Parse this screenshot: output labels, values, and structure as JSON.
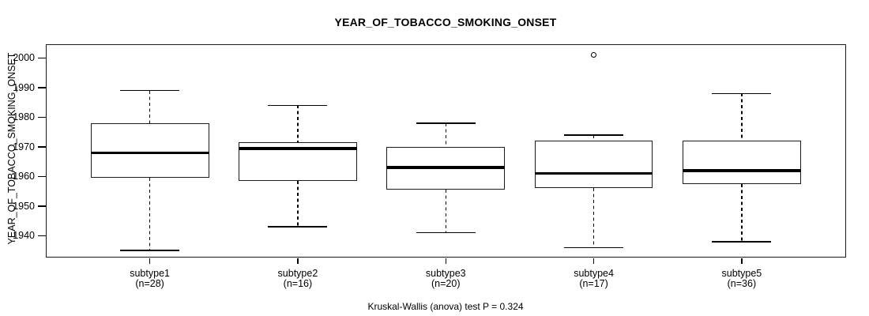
{
  "title": "YEAR_OF_TOBACCO_SMOKING_ONSET",
  "caption": "Kruskal-Wallis (anova) test P = 0.324",
  "colors": {
    "ink": "#000000",
    "background": "#ffffff"
  },
  "chart_data": {
    "type": "boxplot",
    "title": "YEAR_OF_TOBACCO_SMOKING_ONSET",
    "ylabel": "YEAR_OF_TOBACCO_SMOKING_ONSET",
    "xlabel": "",
    "yticks": [
      1940,
      1950,
      1960,
      1970,
      1980,
      1990,
      2000
    ],
    "ylim": [
      1932.5,
      2004.4
    ],
    "grid": false,
    "legend_position": "none",
    "stat_test_label": "Kruskal-Wallis (anova) test P = 0.324",
    "p_value": 0.324,
    "groups": [
      {
        "label": "subtype1",
        "sublabel": "(n=28)",
        "n": 28,
        "whisker_low": 1935,
        "q1": 1959.5,
        "median": 1968,
        "q3": 1978,
        "whisker_high": 1989,
        "outliers": []
      },
      {
        "label": "subtype2",
        "sublabel": "(n=16)",
        "n": 16,
        "whisker_low": 1943,
        "q1": 1958.5,
        "median": 1969.5,
        "q3": 1971.5,
        "whisker_high": 1984,
        "outliers": []
      },
      {
        "label": "subtype3",
        "sublabel": "(n=20)",
        "n": 20,
        "whisker_low": 1941,
        "q1": 1955.5,
        "median": 1963,
        "q3": 1970,
        "whisker_high": 1978,
        "outliers": []
      },
      {
        "label": "subtype4",
        "sublabel": "(n=17)",
        "n": 17,
        "whisker_low": 1936,
        "q1": 1956,
        "median": 1961,
        "q3": 1972,
        "whisker_high": 1974,
        "outliers": [
          2001
        ]
      },
      {
        "label": "subtype5",
        "sublabel": "(n=36)",
        "n": 36,
        "whisker_low": 1938,
        "q1": 1957.5,
        "median": 1962,
        "q3": 1972,
        "whisker_high": 1988,
        "outliers": []
      }
    ]
  }
}
